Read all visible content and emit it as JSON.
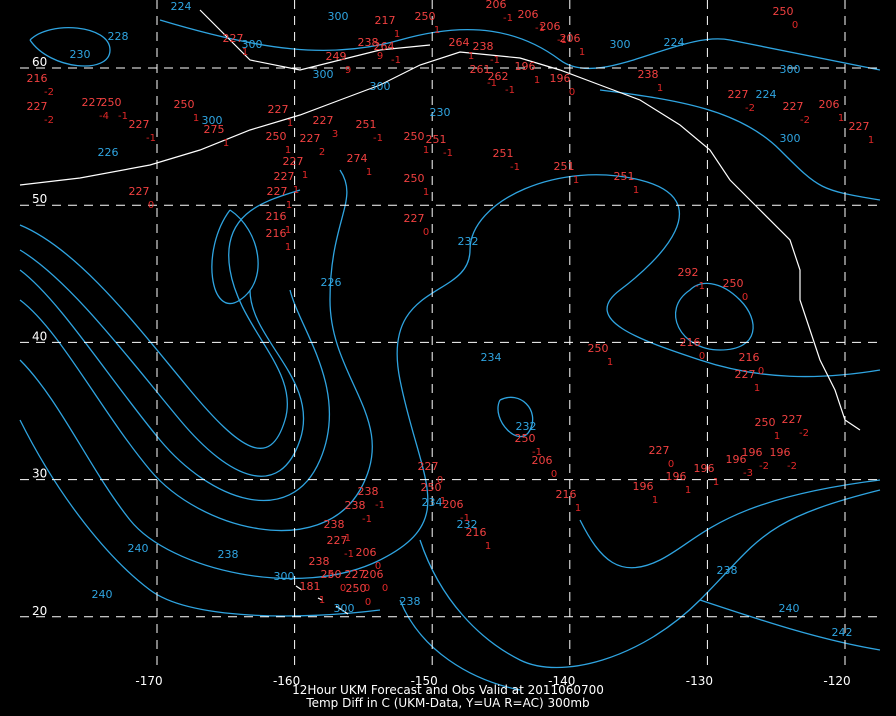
{
  "title": [
    "12Hour UKM Forecast and Obs Valid at 2011060700",
    "Temp Diff in C (UKM-Data, Y=UA R=AC) 300mb"
  ],
  "lons": [
    -170,
    -160,
    -150,
    -140,
    -130,
    -120
  ],
  "lats": [
    60,
    50,
    40,
    30,
    20
  ],
  "contour_labels": [
    "224",
    "228",
    "230",
    "300",
    "300",
    "300",
    "300",
    "300",
    "230",
    "226",
    "226",
    "232",
    "234",
    "232",
    "232",
    "238",
    "238",
    "240",
    "240",
    "238",
    "240",
    "242",
    "224",
    "300",
    "300",
    "224",
    "300",
    "300",
    "300",
    "234"
  ],
  "stations": [
    [
      "250",
      "0"
    ],
    [
      "217",
      "1"
    ],
    [
      "250",
      "1"
    ],
    [
      "206",
      "-1"
    ],
    [
      "206",
      "-1"
    ],
    [
      "206",
      "-1"
    ],
    [
      "206",
      "1"
    ],
    [
      "227",
      "1"
    ],
    [
      "238",
      "9"
    ],
    [
      "264",
      "-1"
    ],
    [
      "249",
      "9"
    ],
    [
      "264",
      "1"
    ],
    [
      "238",
      "-1"
    ],
    [
      "261",
      "-1"
    ],
    [
      "262",
      "-1"
    ],
    [
      "196",
      "1"
    ],
    [
      "196",
      "0"
    ],
    [
      "238",
      "1"
    ],
    [
      "216",
      "-2"
    ],
    [
      "227",
      "-2"
    ],
    [
      "227",
      "-4"
    ],
    [
      "250",
      "-1"
    ],
    [
      "250",
      "1"
    ],
    [
      "227",
      "-1"
    ],
    [
      "275",
      "1"
    ],
    [
      "227",
      "1"
    ],
    [
      "250",
      "1"
    ],
    [
      "227",
      "2"
    ],
    [
      "227",
      "3"
    ],
    [
      "251",
      "-1"
    ],
    [
      "251",
      "-1"
    ],
    [
      "250",
      "1"
    ],
    [
      "274",
      "1"
    ],
    [
      "251",
      "-1"
    ],
    [
      "251",
      "1"
    ],
    [
      "251",
      "1"
    ],
    [
      "250",
      "1"
    ],
    [
      "227",
      "0"
    ],
    [
      "227",
      "1"
    ],
    [
      "227",
      "1"
    ],
    [
      "227",
      "1"
    ],
    [
      "216",
      "1"
    ],
    [
      "216",
      "1"
    ],
    [
      "227",
      "0"
    ],
    [
      "227",
      "-2"
    ],
    [
      "227",
      "-2"
    ],
    [
      "206",
      "1"
    ],
    [
      "227",
      "1"
    ],
    [
      "250",
      "0"
    ],
    [
      "292",
      "-1"
    ],
    [
      "216",
      "0"
    ],
    [
      "250",
      "1"
    ],
    [
      "216",
      "0"
    ],
    [
      "227",
      "1"
    ],
    [
      "250",
      "1"
    ],
    [
      "227",
      "-2"
    ],
    [
      "196",
      "-2"
    ],
    [
      "196",
      "-2"
    ],
    [
      "196",
      "-3"
    ],
    [
      "196",
      "1"
    ],
    [
      "196",
      "1"
    ],
    [
      "227",
      "0"
    ],
    [
      "196",
      "1"
    ],
    [
      "216",
      "1"
    ],
    [
      "250",
      "-1"
    ],
    [
      "206",
      "0"
    ],
    [
      "227",
      "0"
    ],
    [
      "250",
      "1"
    ],
    [
      "206",
      "-1"
    ],
    [
      "216",
      "1"
    ],
    [
      "238",
      "-1"
    ],
    [
      "238",
      "-1"
    ],
    [
      "238",
      "-1"
    ],
    [
      "227",
      "-1"
    ],
    [
      "206",
      "0"
    ],
    [
      "238",
      "0"
    ],
    [
      "250",
      "0"
    ],
    [
      "227",
      "0"
    ],
    [
      "206",
      "0"
    ],
    [
      "250",
      "0"
    ],
    [
      "181",
      "1"
    ]
  ]
}
